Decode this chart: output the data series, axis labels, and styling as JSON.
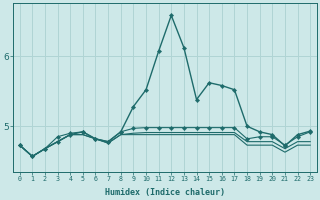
{
  "xlabel": "Humidex (Indice chaleur)",
  "bg_color": "#cde8e8",
  "grid_color": "#b0d4d4",
  "line_color": "#1e6b6b",
  "xlim": [
    -0.5,
    23.5
  ],
  "ylim": [
    4.35,
    6.75
  ],
  "yticks": [
    5,
    6
  ],
  "xticks": [
    0,
    1,
    2,
    3,
    4,
    5,
    6,
    7,
    8,
    9,
    10,
    11,
    12,
    13,
    14,
    15,
    16,
    17,
    18,
    19,
    20,
    21,
    22,
    23
  ],
  "series": [
    {
      "x": [
        0,
        1,
        2,
        3,
        4,
        5,
        6,
        7,
        8,
        9,
        10,
        11,
        12,
        13,
        14,
        15,
        16,
        17,
        18,
        19,
        20,
        21,
        22,
        23
      ],
      "y": [
        4.73,
        4.57,
        4.68,
        4.78,
        4.88,
        4.92,
        4.82,
        4.78,
        4.92,
        5.28,
        5.52,
        6.07,
        6.58,
        6.12,
        5.38,
        5.62,
        5.58,
        5.52,
        5.0,
        4.92,
        4.88,
        4.72,
        4.88,
        4.93
      ],
      "marker": true,
      "lw": 1.0
    },
    {
      "x": [
        0,
        1,
        2,
        3,
        4,
        5,
        6,
        7,
        8,
        9,
        10,
        11,
        12,
        13,
        14,
        15,
        16,
        17,
        18,
        19,
        20,
        21,
        22,
        23
      ],
      "y": [
        4.73,
        4.57,
        4.68,
        4.85,
        4.9,
        4.92,
        4.82,
        4.78,
        4.92,
        4.97,
        4.98,
        4.98,
        4.98,
        4.98,
        4.98,
        4.98,
        4.98,
        4.98,
        4.82,
        4.85,
        4.85,
        4.73,
        4.85,
        4.92
      ],
      "marker": true,
      "lw": 0.8
    },
    {
      "x": [
        0,
        1,
        2,
        3,
        4,
        5,
        6,
        7,
        8,
        9,
        10,
        11,
        12,
        13,
        14,
        15,
        16,
        17,
        18,
        19,
        20,
        21,
        22,
        23
      ],
      "y": [
        4.73,
        4.57,
        4.68,
        4.78,
        4.88,
        4.88,
        4.82,
        4.76,
        4.88,
        4.9,
        4.91,
        4.91,
        4.91,
        4.91,
        4.91,
        4.91,
        4.91,
        4.91,
        4.78,
        4.78,
        4.78,
        4.68,
        4.78,
        4.78
      ],
      "marker": false,
      "lw": 0.8
    },
    {
      "x": [
        0,
        1,
        2,
        3,
        4,
        5,
        6,
        7,
        8,
        9,
        10,
        11,
        12,
        13,
        14,
        15,
        16,
        17,
        18,
        19,
        20,
        21,
        22,
        23
      ],
      "y": [
        4.73,
        4.57,
        4.68,
        4.78,
        4.88,
        4.88,
        4.82,
        4.76,
        4.88,
        4.88,
        4.88,
        4.88,
        4.88,
        4.88,
        4.88,
        4.88,
        4.88,
        4.88,
        4.73,
        4.73,
        4.73,
        4.63,
        4.73,
        4.73
      ],
      "marker": false,
      "lw": 0.8
    }
  ]
}
